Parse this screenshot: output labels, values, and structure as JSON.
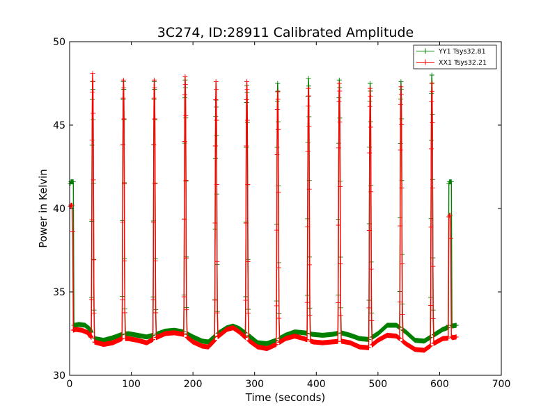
{
  "chart_data": {
    "type": "line",
    "title": "3C274, ID:28911 Calibrated Amplitude",
    "xlabel": "Time (seconds)",
    "ylabel": "Power in Kelvin",
    "xlim": [
      0,
      700
    ],
    "ylim": [
      30,
      50
    ],
    "xticks": [
      "0",
      "100",
      "200",
      "300",
      "400",
      "500",
      "600",
      "700"
    ],
    "yticks": [
      "30",
      "35",
      "40",
      "45",
      "50"
    ],
    "grid": false,
    "legend_position": "top-right",
    "marker": "plus",
    "series": [
      {
        "name": "YY1 Tsys32.81",
        "color": "#008000",
        "baseline": {
          "x": [
            3,
            8,
            15,
            25,
            32,
            40,
            55,
            70,
            85,
            95,
            110,
            125,
            140,
            155,
            170,
            185,
            200,
            215,
            225,
            240,
            255,
            265,
            275,
            290,
            305,
            320,
            335,
            350,
            365,
            380,
            395,
            410,
            425,
            440,
            455,
            470,
            485,
            500,
            515,
            530,
            545,
            560,
            575,
            590,
            605,
            620,
            627
          ],
          "y": [
            32.95,
            33.0,
            33.05,
            33.0,
            32.8,
            32.2,
            32.1,
            32.25,
            32.45,
            32.5,
            32.4,
            32.3,
            32.45,
            32.65,
            32.7,
            32.6,
            32.3,
            32.05,
            32.0,
            32.5,
            32.85,
            32.95,
            32.8,
            32.4,
            31.95,
            31.9,
            32.1,
            32.4,
            32.6,
            32.55,
            32.45,
            32.4,
            32.45,
            32.55,
            32.4,
            32.2,
            32.15,
            32.5,
            33.0,
            33.0,
            32.6,
            32.1,
            32.05,
            32.4,
            32.75,
            32.95,
            33.0
          ]
        },
        "spikes": [
          {
            "x": 37.5,
            "peak": 47.6
          },
          {
            "x": 87.5,
            "peak": 47.6
          },
          {
            "x": 137.5,
            "peak": 47.6
          },
          {
            "x": 187.5,
            "peak": 47.7
          },
          {
            "x": 237.5,
            "peak": 46.5
          },
          {
            "x": 287.5,
            "peak": 47.4
          },
          {
            "x": 337.5,
            "peak": 47.5
          },
          {
            "x": 387.5,
            "peak": 47.8
          },
          {
            "x": 437.5,
            "peak": 47.7
          },
          {
            "x": 487.5,
            "peak": 47.5
          },
          {
            "x": 537.5,
            "peak": 47.6
          },
          {
            "x": 587.5,
            "peak": 48.0
          }
        ],
        "end_jumps": [
          {
            "x": [
              1,
              2,
              3,
              4,
              5,
              6,
              7
            ],
            "y": [
              41.5,
              41.6,
              41.6,
              41.6,
              41.6,
              41.6,
              33.0
            ]
          },
          {
            "x": [
              614,
              615,
              616,
              617,
              618,
              619,
              620
            ],
            "y": [
              33.0,
              41.5,
              41.6,
              41.6,
              41.6,
              41.6,
              33.0
            ]
          }
        ]
      },
      {
        "name": "XX1 Tsys32.21",
        "color": "#ff0000",
        "baseline": {
          "x": [
            5,
            10,
            20,
            30,
            40,
            55,
            70,
            85,
            95,
            110,
            125,
            140,
            155,
            170,
            185,
            200,
            215,
            225,
            240,
            255,
            265,
            275,
            290,
            305,
            320,
            335,
            350,
            365,
            380,
            395,
            410,
            425,
            440,
            455,
            470,
            485,
            500,
            515,
            530,
            545,
            560,
            575,
            590,
            605,
            620,
            627
          ],
          "y": [
            32.7,
            32.75,
            32.7,
            32.55,
            32.0,
            31.85,
            31.95,
            32.2,
            32.2,
            32.1,
            31.95,
            32.25,
            32.5,
            32.55,
            32.45,
            32.0,
            31.75,
            31.7,
            32.3,
            32.75,
            32.85,
            32.6,
            32.1,
            31.7,
            31.6,
            31.85,
            32.2,
            32.35,
            32.2,
            32.0,
            31.95,
            32.0,
            32.05,
            31.95,
            31.7,
            31.65,
            32.1,
            32.4,
            32.35,
            31.9,
            31.55,
            31.5,
            31.9,
            32.2,
            32.25,
            32.3
          ]
        },
        "spikes": [
          {
            "x": 37.5,
            "peak": 48.1
          },
          {
            "x": 87.5,
            "peak": 47.7
          },
          {
            "x": 137.5,
            "peak": 47.7
          },
          {
            "x": 187.5,
            "peak": 47.9
          },
          {
            "x": 237.5,
            "peak": 47.6
          },
          {
            "x": 287.5,
            "peak": 47.6
          },
          {
            "x": 337.5,
            "peak": 47.0
          },
          {
            "x": 387.5,
            "peak": 47.2
          },
          {
            "x": 437.5,
            "peak": 47.5
          },
          {
            "x": 487.5,
            "peak": 47.2
          },
          {
            "x": 537.5,
            "peak": 47.3
          },
          {
            "x": 587.5,
            "peak": 47.5
          }
        ],
        "end_jumps": [
          {
            "x": [
              1,
              2,
              3,
              4,
              5,
              6
            ],
            "y": [
              40.1,
              40.2,
              40.2,
              40.2,
              38.6,
              32.7
            ]
          },
          {
            "x": [
              614,
              615,
              616,
              617,
              618,
              619,
              620
            ],
            "y": [
              32.3,
              39.5,
              39.6,
              39.6,
              38.2,
              32.3,
              32.3
            ]
          }
        ]
      }
    ]
  }
}
